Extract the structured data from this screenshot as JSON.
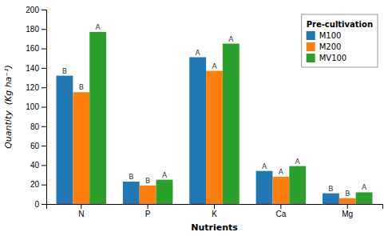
{
  "chart_data": {
    "type": "bar",
    "categories": [
      "N",
      "P",
      "K",
      "Ca",
      "Mg"
    ],
    "series": [
      {
        "name": "M100",
        "values": [
          132,
          23,
          151,
          34,
          11
        ],
        "annotations": [
          "B",
          "B",
          "A",
          "A",
          "B"
        ]
      },
      {
        "name": "M200",
        "values": [
          115,
          19,
          137,
          28,
          6
        ],
        "annotations": [
          "B",
          "B",
          "A",
          "A",
          "B"
        ]
      },
      {
        "name": "MV100",
        "values": [
          177,
          25,
          165,
          39,
          12
        ],
        "annotations": [
          "A",
          "A",
          "A",
          "A",
          "A"
        ]
      }
    ],
    "xlabel": "Nutrients",
    "ylabel": "Quantity  (Kg ha⁻¹)",
    "legend_title": "Pre-cultivation",
    "legend": "upper right",
    "ylim": [
      0,
      200
    ],
    "yticks": [
      0,
      20,
      40,
      60,
      80,
      100,
      120,
      140,
      160,
      180,
      200
    ],
    "grid": false
  }
}
